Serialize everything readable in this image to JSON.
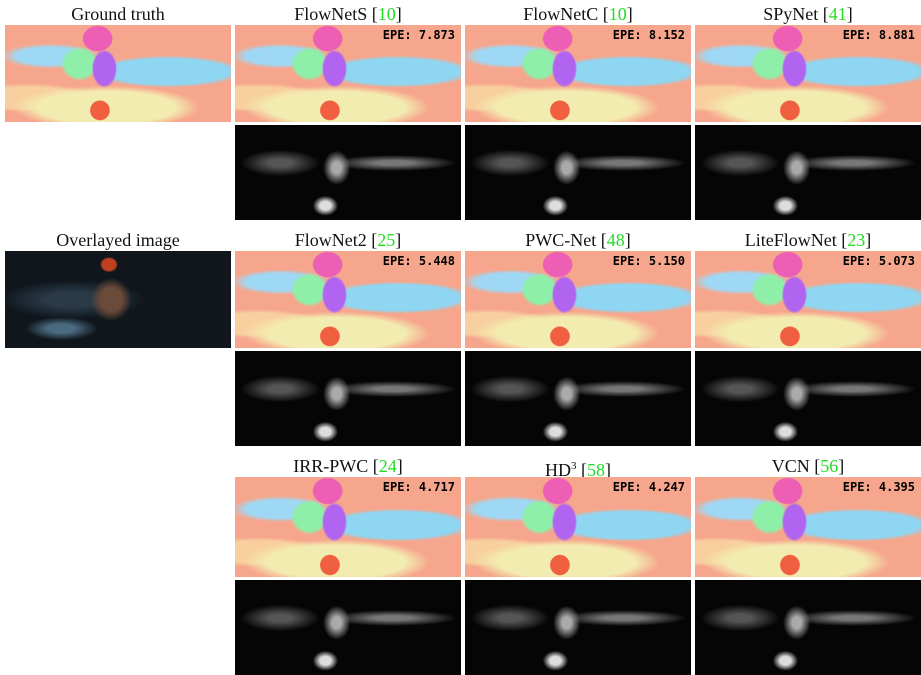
{
  "left": [
    {
      "label": "Ground truth"
    },
    {
      "label": "Overlayed image"
    }
  ],
  "methods": [
    {
      "name": "FlowNetS",
      "ref": "[10]",
      "epe": "EPE: 7.873"
    },
    {
      "name": "FlowNetC",
      "ref": "[10]",
      "epe": "EPE: 8.152"
    },
    {
      "name": "SPyNet",
      "ref": "[41]",
      "epe": "EPE: 8.881"
    },
    {
      "name": "FlowNet2",
      "ref": "[25]",
      "epe": "EPE: 5.448"
    },
    {
      "name": "PWC-Net",
      "ref": "[48]",
      "epe": "EPE: 5.150"
    },
    {
      "name": "LiteFlowNet",
      "ref": "[23]",
      "epe": "EPE: 5.073"
    },
    {
      "name": "IRR-PWC",
      "ref": "[24]",
      "epe": "EPE: 4.717"
    },
    {
      "name": "HD",
      "sup": "3",
      "ref": "[58]",
      "epe": "EPE: 4.247"
    },
    {
      "name": "VCN",
      "ref": "[56]",
      "epe": "EPE: 4.395"
    }
  ]
}
